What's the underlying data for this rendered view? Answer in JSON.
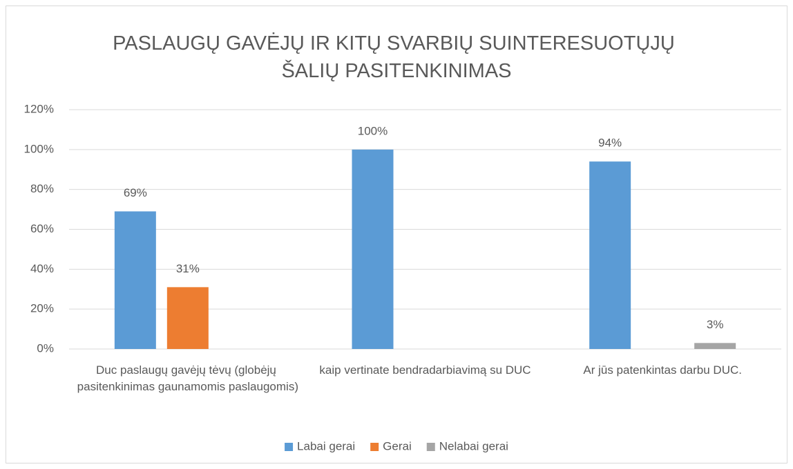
{
  "chart_data": {
    "type": "bar",
    "title": "PASLAUGŲ GAVĖJŲ IR KITŲ SVARBIŲ SUINTERESUOTŲJŲ ŠALIŲ PASITENKINIMAS",
    "categories": [
      "Duc paslaugų gavėjų tėvų (globėjų pasitenkinimas gaunamomis paslaugomis)",
      "kaip vertinate bendradarbiavimą su DUC",
      "Ar jūs patenkintas darbu DUC."
    ],
    "series": [
      {
        "name": "Labai gerai",
        "color": "#5b9bd5",
        "values": [
          69,
          100,
          94
        ],
        "value_labels": [
          "69%",
          "100%",
          "94%"
        ]
      },
      {
        "name": "Gerai",
        "color": "#ed7d31",
        "values": [
          31,
          null,
          null
        ],
        "value_labels": [
          "31%",
          null,
          null
        ]
      },
      {
        "name": "Nelabai gerai",
        "color": "#a5a5a5",
        "values": [
          null,
          null,
          3
        ],
        "value_labels": [
          null,
          null,
          "3%"
        ]
      }
    ],
    "ylim": [
      0,
      120
    ],
    "yticks": [
      {
        "value": 0,
        "label": "0%"
      },
      {
        "value": 20,
        "label": "20%"
      },
      {
        "value": 40,
        "label": "40%"
      },
      {
        "value": 60,
        "label": "60%"
      },
      {
        "value": 80,
        "label": "80%"
      },
      {
        "value": 100,
        "label": "100%"
      },
      {
        "value": 120,
        "label": "120%"
      }
    ],
    "grid": true,
    "legend": "bottom"
  }
}
